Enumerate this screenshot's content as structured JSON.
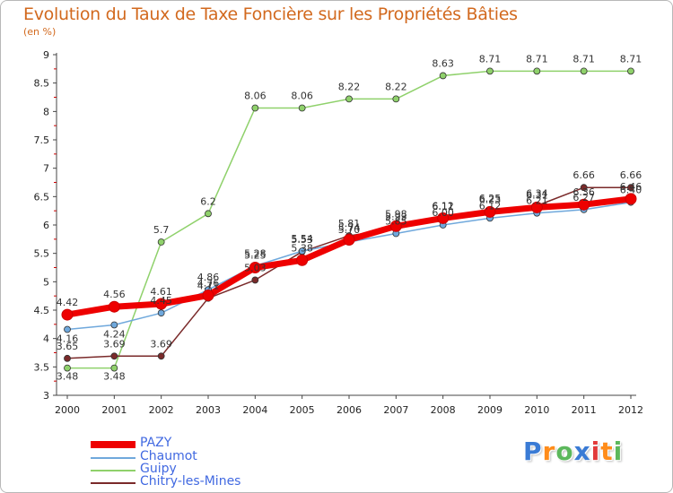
{
  "chart_data": {
    "type": "line",
    "title": "Evolution du Taux de Taxe Foncière sur les Propriétés Bâties",
    "unit_label": "(en %)",
    "xlabel": "",
    "ylabel": "",
    "x": [
      "2000",
      "2001",
      "2002",
      "2003",
      "2004",
      "2005",
      "2006",
      "2007",
      "2008",
      "2009",
      "2010",
      "2011",
      "2012"
    ],
    "ylim": [
      3,
      9
    ],
    "yticks": [
      "3",
      "3.5",
      "4",
      "4.5",
      "5",
      "5.5",
      "6",
      "6.5",
      "7",
      "7.5",
      "8",
      "8.5",
      "9"
    ],
    "grid": false,
    "legend_position": "bottom-left",
    "series": [
      {
        "name": "PAZY",
        "color": "#ee0000",
        "values": [
          4.42,
          4.56,
          4.61,
          4.76,
          5.25,
          5.38,
          5.74,
          5.98,
          6.12,
          6.23,
          6.31,
          6.36,
          6.46
        ],
        "labels": [
          "4.42",
          "4.56",
          "4.61",
          "4.76",
          "5.25",
          "5.38",
          "5.74",
          "5.98",
          "6.12",
          "6.23",
          "6.31",
          "6.36",
          "6.46"
        ]
      },
      {
        "name": "Chaumot",
        "color": "#6fa8dc",
        "values": [
          4.16,
          4.24,
          4.45,
          4.86,
          5.28,
          5.54,
          5.7,
          5.85,
          6.0,
          6.12,
          6.21,
          6.27,
          6.4
        ],
        "labels": [
          "4.16",
          "4.24",
          "4.45",
          "4.86",
          "5.28",
          "5.54",
          "5.70",
          "5.85",
          "6.00",
          "6.12",
          "6.21",
          "6.27",
          "6.40"
        ]
      },
      {
        "name": "Guipy",
        "color": "#8fd16b",
        "values": [
          3.48,
          3.48,
          5.7,
          6.2,
          8.06,
          8.06,
          8.22,
          8.22,
          8.63,
          8.71,
          8.71,
          8.71,
          8.71
        ],
        "labels": [
          "3.48",
          "3.48",
          "5.7",
          "6.2",
          "8.06",
          "8.06",
          "8.22",
          "8.22",
          "8.63",
          "8.71",
          "8.71",
          "8.71",
          "8.71"
        ]
      },
      {
        "name": "Chitry-les-Mines",
        "color": "#7a2a2a",
        "values": [
          3.65,
          3.69,
          3.69,
          4.71,
          5.03,
          5.53,
          5.81,
          5.93,
          6.11,
          6.25,
          6.34,
          6.66,
          6.66
        ],
        "labels": [
          "3.65",
          "3.69",
          "3.69",
          "4.71",
          "5.03",
          "5.53",
          "5.81",
          "5.93",
          "6.11",
          "6.25",
          "6.34",
          "6.66",
          "6.66"
        ]
      }
    ]
  },
  "logo": {
    "letters": [
      "P",
      "r",
      "o",
      "x",
      "i",
      "t",
      "i"
    ],
    "colors": [
      "#3a7bd5",
      "#ff8c1a",
      "#5cb85c",
      "#3a7bd5",
      "#e23b3b",
      "#ff8c1a",
      "#5cb85c"
    ]
  }
}
